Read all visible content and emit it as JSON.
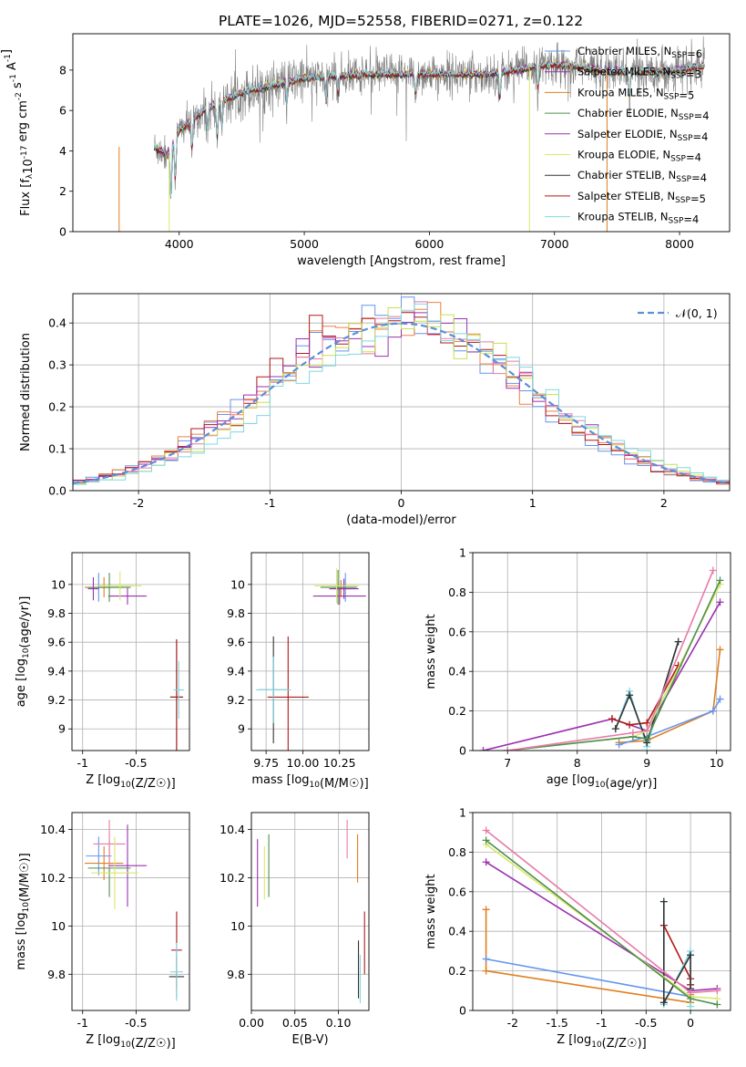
{
  "figure_title": "PLATE=1026, MJD=52558, FIBERID=0271, z=0.122",
  "colors": {
    "Chabrier MILES": "#6495ed",
    "Salpeter MILES": "#9b30b0",
    "Kroupa MILES": "#e07f1f",
    "Chabrier ELODIE": "#4e8f4e",
    "Salpeter ELODIE": "#9b30b0",
    "Kroupa ELODIE": "#d8e86a",
    "Chabrier STELIB": "#333333",
    "Salpeter STELIB": "#b01818",
    "Kroupa STELIB": "#80d8e0",
    "data": "#808080",
    "hist_orange": "#f08040",
    "hist_pink": "#e87aa8",
    "hist_lime": "#c8e050",
    "gauss": "#5b8fd9",
    "grid": "#b0b0b0"
  },
  "chart_data": [
    {
      "type": "line",
      "name": "spectrum",
      "xlabel": "wavelength [Angstrom, rest frame]",
      "ylabel": "Flux [f_λ10^-17 erg cm^-2 s^-1 A^-1]",
      "xlim": [
        3150,
        8400
      ],
      "ylim": [
        0,
        9.8
      ],
      "xticks": [
        4000,
        5000,
        6000,
        7000,
        8000
      ],
      "yticks": [
        0,
        2,
        4,
        6,
        8
      ],
      "legend_position": "upper right",
      "legend": [
        {
          "label": "Chabrier MILES, N_SSP=6",
          "color_key": "Chabrier MILES"
        },
        {
          "label": "Salpeter MILES, N_SSP=3",
          "color_key": "Salpeter MILES"
        },
        {
          "label": "Kroupa MILES, N_SSP=5",
          "color_key": "Kroupa MILES"
        },
        {
          "label": "Chabrier ELODIE, N_SSP=4",
          "color_key": "Chabrier ELODIE"
        },
        {
          "label": "Salpeter ELODIE, N_SSP=4",
          "color_key": "Salpeter ELODIE"
        },
        {
          "label": "Kroupa ELODIE, N_SSP=4",
          "color_key": "Kroupa ELODIE"
        },
        {
          "label": "Chabrier STELIB, N_SSP=4",
          "color_key": "Chabrier STELIB"
        },
        {
          "label": "Salpeter STELIB, N_SSP=5",
          "color_key": "Salpeter STELIB"
        },
        {
          "label": "Kroupa STELIB, N_SSP=4",
          "color_key": "Kroupa STELIB"
        }
      ],
      "continuum": [
        [
          3800,
          4.2
        ],
        [
          3900,
          3.8
        ],
        [
          4000,
          5.0
        ],
        [
          4200,
          6.0
        ],
        [
          4500,
          6.9
        ],
        [
          5000,
          7.6
        ],
        [
          5500,
          7.8
        ],
        [
          6000,
          7.8
        ],
        [
          6500,
          7.8
        ],
        [
          7000,
          8.3
        ],
        [
          7500,
          7.9
        ],
        [
          8000,
          8.0
        ],
        [
          8200,
          8.2
        ]
      ],
      "dips": [
        [
          3934,
          2.5
        ],
        [
          3969,
          2.0
        ],
        [
          4102,
          1.5
        ],
        [
          4227,
          1.0
        ],
        [
          4304,
          1.6
        ],
        [
          4341,
          1.2
        ],
        [
          4861,
          1.0
        ],
        [
          5175,
          1.2
        ],
        [
          5270,
          0.9
        ],
        [
          5890,
          1.0
        ],
        [
          6563,
          1.3
        ],
        [
          6868,
          1.0
        ],
        [
          7600,
          1.2
        ]
      ],
      "data_range": [
        3800,
        8200
      ],
      "model_range": [
        3800,
        8200
      ]
    },
    {
      "type": "histogram",
      "name": "residuals",
      "xlabel": "(data-model)/error",
      "ylabel": "Normed distribution",
      "xlim": [
        -2.5,
        2.5
      ],
      "ylim": [
        0,
        0.47
      ],
      "xticks": [
        -2,
        -1,
        0,
        1,
        2
      ],
      "yticks": [
        0.0,
        0.1,
        0.2,
        0.3,
        0.4
      ],
      "legend_position": "upper right",
      "gauss_label": "𝒩(0, 1)",
      "bin_width": 0.1
    },
    {
      "type": "errorbar",
      "name": "age_vs_Z",
      "xlabel": "Z [log10(Z/Z☉)]",
      "ylabel": "age  [log10(age/yr)]",
      "xlim": [
        -1.1,
        -0.0
      ],
      "ylim": [
        8.85,
        10.22
      ],
      "xticks": [
        -1.0,
        -0.5
      ],
      "yticks": [
        9.0,
        9.2,
        9.4,
        9.6,
        9.8,
        10.0
      ],
      "points": [
        {
          "x": -0.85,
          "y": 9.98,
          "xerr": 0.12,
          "yerr": 0.1,
          "color_key": "Chabrier MILES"
        },
        {
          "x": -0.58,
          "y": 9.92,
          "xerr": 0.18,
          "yerr": 0.06,
          "color_key": "Salpeter MILES"
        },
        {
          "x": -0.8,
          "y": 9.98,
          "xerr": 0.18,
          "yerr": 0.07,
          "color_key": "Kroupa MILES"
        },
        {
          "x": -0.75,
          "y": 9.98,
          "xerr": 0.2,
          "yerr": 0.1,
          "color_key": "Chabrier ELODIE"
        },
        {
          "x": -0.9,
          "y": 9.97,
          "xerr": 0.05,
          "yerr": 0.08,
          "color_key": "Salpeter ELODIE"
        },
        {
          "x": -0.65,
          "y": 9.99,
          "xerr": 0.2,
          "yerr": 0.1,
          "color_key": "Kroupa ELODIE"
        },
        {
          "x": -0.12,
          "y": 9.22,
          "xerr": 0.06,
          "yerr": 0.4,
          "color_key": "Chabrier STELIB"
        },
        {
          "x": -0.12,
          "y": 9.22,
          "xerr": 0.06,
          "yerr": 0.4,
          "color_key": "Salpeter STELIB"
        },
        {
          "x": -0.1,
          "y": 9.27,
          "xerr": 0.05,
          "yerr": 0.2,
          "color_key": "Kroupa STELIB"
        }
      ]
    },
    {
      "type": "errorbar",
      "name": "age_vs_mass",
      "xlabel": "mass [log10(M/M☉)]",
      "ylabel": "",
      "xlim": [
        9.65,
        10.45
      ],
      "ylim": [
        8.85,
        10.22
      ],
      "xticks": [
        9.75,
        10.0,
        10.25
      ],
      "xticklabels": [
        "9.75",
        "10.00",
        "10.25"
      ],
      "yticks": [
        9.0,
        9.2,
        9.4,
        9.6,
        9.8,
        10.0
      ],
      "points": [
        {
          "x": 10.29,
          "y": 9.98,
          "xerr": 0.08,
          "yerr": 0.1,
          "color_key": "Chabrier MILES"
        },
        {
          "x": 10.25,
          "y": 9.92,
          "xerr": 0.18,
          "yerr": 0.06,
          "color_key": "Salpeter MILES"
        },
        {
          "x": 10.26,
          "y": 9.97,
          "xerr": 0.07,
          "yerr": 0.06,
          "color_key": "Kroupa MILES"
        },
        {
          "x": 10.24,
          "y": 9.98,
          "xerr": 0.12,
          "yerr": 0.12,
          "color_key": "Chabrier ELODIE"
        },
        {
          "x": 10.28,
          "y": 9.97,
          "xerr": 0.1,
          "yerr": 0.07,
          "color_key": "Salpeter ELODIE"
        },
        {
          "x": 10.23,
          "y": 9.99,
          "xerr": 0.15,
          "yerr": 0.12,
          "color_key": "Kroupa ELODIE"
        },
        {
          "x": 9.8,
          "y": 9.27,
          "xerr": 0.1,
          "yerr": 0.37,
          "color_key": "Chabrier STELIB"
        },
        {
          "x": 9.9,
          "y": 9.22,
          "xerr": 0.14,
          "yerr": 0.42,
          "color_key": "Salpeter STELIB"
        },
        {
          "x": 9.8,
          "y": 9.27,
          "xerr": 0.12,
          "yerr": 0.23,
          "color_key": "Kroupa STELIB"
        }
      ]
    },
    {
      "type": "line",
      "name": "weight_vs_age",
      "xlabel": "age  [log10(age/yr)]",
      "ylabel": "mass weight",
      "xlim": [
        6.5,
        10.2
      ],
      "ylim": [
        0,
        1.0
      ],
      "xticks": [
        7,
        8,
        9,
        10
      ],
      "yticks": [
        0.0,
        0.2,
        0.4,
        0.6,
        0.8,
        1.0
      ],
      "series": [
        {
          "color_key": "Kroupa MILES",
          "x": [
            8.6,
            9.0,
            9.95,
            10.05
          ],
          "y": [
            0.04,
            0.05,
            0.2,
            0.51
          ]
        },
        {
          "color_key": "Chabrier MILES",
          "x": [
            8.6,
            9.0,
            9.95,
            10.05
          ],
          "y": [
            0.03,
            0.07,
            0.2,
            0.26
          ]
        },
        {
          "color_key": "Salpeter MILES",
          "x": [
            6.65,
            8.5,
            9.0,
            10.05
          ],
          "y": [
            0.0,
            0.16,
            0.1,
            0.75
          ]
        },
        {
          "color_key": "Salpeter STELIB",
          "x": [
            8.5,
            8.75,
            9.0,
            9.45
          ],
          "y": [
            0.16,
            0.13,
            0.14,
            0.43
          ]
        },
        {
          "color_key": "Kroupa STELIB",
          "x": [
            8.55,
            8.75,
            9.0,
            9.45
          ],
          "y": [
            0.11,
            0.3,
            0.02,
            0.55
          ]
        },
        {
          "color_key": "Chabrier STELIB",
          "x": [
            8.55,
            8.75,
            9.0,
            9.45
          ],
          "y": [
            0.11,
            0.28,
            0.04,
            0.55
          ]
        },
        {
          "color_key": "Kroupa ELODIE",
          "x": [
            7.0,
            8.8,
            9.0,
            10.05
          ],
          "y": [
            0.0,
            0.07,
            0.1,
            0.84
          ]
        },
        {
          "color_key": "Chabrier ELODIE",
          "x": [
            7.0,
            8.8,
            9.0,
            10.05
          ],
          "y": [
            0.0,
            0.07,
            0.06,
            0.86
          ]
        },
        {
          "color_key": "hist_pink",
          "x": [
            7.0,
            8.8,
            9.0,
            9.95
          ],
          "y": [
            0.0,
            0.09,
            0.1,
            0.91
          ]
        }
      ]
    },
    {
      "type": "errorbar",
      "name": "mass_vs_Z",
      "xlabel": "Z [log10(Z/Z☉)]",
      "ylabel": "mass [log10(M/M☉)]",
      "xlim": [
        -1.1,
        -0.0
      ],
      "ylim": [
        9.65,
        10.47
      ],
      "xticks": [
        -1.0,
        -0.5
      ],
      "yticks": [
        9.8,
        10.0,
        10.2,
        10.4
      ],
      "points": [
        {
          "x": -0.85,
          "y": 10.29,
          "xerr": 0.12,
          "yerr": 0.08,
          "color_key": "Chabrier MILES"
        },
        {
          "x": -0.58,
          "y": 10.25,
          "xerr": 0.18,
          "yerr": 0.17,
          "color_key": "Salpeter MILES"
        },
        {
          "x": -0.8,
          "y": 10.26,
          "xerr": 0.18,
          "yerr": 0.07,
          "color_key": "Kroupa MILES"
        },
        {
          "x": -0.75,
          "y": 10.24,
          "xerr": 0.2,
          "yerr": 0.12,
          "color_key": "Chabrier ELODIE"
        },
        {
          "x": -0.75,
          "y": 10.34,
          "xerr": 0.15,
          "yerr": 0.1,
          "color_key": "hist_pink"
        },
        {
          "x": -0.7,
          "y": 10.22,
          "xerr": 0.22,
          "yerr": 0.15,
          "color_key": "Kroupa ELODIE"
        },
        {
          "x": -0.12,
          "y": 9.79,
          "xerr": 0.07,
          "yerr": 0.09,
          "color_key": "Chabrier STELIB"
        },
        {
          "x": -0.12,
          "y": 9.9,
          "xerr": 0.05,
          "yerr": 0.16,
          "color_key": "Salpeter STELIB"
        },
        {
          "x": -0.12,
          "y": 9.81,
          "xerr": 0.06,
          "yerr": 0.12,
          "color_key": "Kroupa STELIB"
        }
      ]
    },
    {
      "type": "errorbar",
      "name": "mass_vs_ebv",
      "xlabel": "E(B-V)",
      "ylabel": "",
      "xlim": [
        0.0,
        0.135
      ],
      "ylim": [
        9.65,
        10.47
      ],
      "xticks": [
        0.0,
        0.05,
        0.1
      ],
      "xticklabels": [
        "0.00",
        "0.05",
        "0.10"
      ],
      "yticks": [
        9.8,
        10.0,
        10.2,
        10.4
      ],
      "points": [
        {
          "x": 0.007,
          "y": 10.22,
          "xerr": 0.0,
          "yerr": 0.14,
          "color_key": "Salpeter MILES"
        },
        {
          "x": 0.015,
          "y": 10.22,
          "xerr": 0.0,
          "yerr": 0.11,
          "color_key": "Kroupa ELODIE"
        },
        {
          "x": 0.02,
          "y": 10.25,
          "xerr": 0.0,
          "yerr": 0.13,
          "color_key": "Chabrier ELODIE"
        },
        {
          "x": 0.11,
          "y": 10.36,
          "xerr": 0.0,
          "yerr": 0.08,
          "color_key": "hist_pink"
        },
        {
          "x": 0.122,
          "y": 10.28,
          "xerr": 0.0,
          "yerr": 0.1,
          "color_key": "Kroupa MILES"
        },
        {
          "x": 0.123,
          "y": 9.82,
          "xerr": 0.0,
          "yerr": 0.12,
          "color_key": "Chabrier STELIB"
        },
        {
          "x": 0.125,
          "y": 9.78,
          "xerr": 0.0,
          "yerr": 0.1,
          "color_key": "Kroupa STELIB"
        },
        {
          "x": 0.13,
          "y": 9.93,
          "xerr": 0.0,
          "yerr": 0.13,
          "color_key": "Salpeter STELIB"
        }
      ]
    },
    {
      "type": "line",
      "name": "weight_vs_Z",
      "xlabel": "Z [log10(Z/Z☉)]",
      "ylabel": "mass weight",
      "xlim": [
        -2.45,
        0.45
      ],
      "ylim": [
        0,
        1.0
      ],
      "xticks": [
        -2.0,
        -1.5,
        -1.0,
        -0.5,
        0.0
      ],
      "yticks": [
        0.0,
        0.2,
        0.4,
        0.6,
        0.8,
        1.0
      ],
      "series": [
        {
          "color_key": "Kroupa MILES",
          "x": [
            -2.3,
            -2.3,
            0.0,
            0.0
          ],
          "y": [
            0.51,
            0.2,
            0.04,
            0.08
          ]
        },
        {
          "color_key": "Chabrier MILES",
          "x": [
            -2.3,
            0.0
          ],
          "y": [
            0.26,
            0.07
          ]
        },
        {
          "color_key": "Salpeter MILES",
          "x": [
            -2.3,
            0.0,
            0.3
          ],
          "y": [
            0.75,
            0.1,
            0.11
          ]
        },
        {
          "color_key": "Salpeter STELIB",
          "x": [
            -0.3,
            0.0,
            0.0
          ],
          "y": [
            0.43,
            0.16,
            0.13
          ]
        },
        {
          "color_key": "Kroupa STELIB",
          "x": [
            -0.3,
            -0.3,
            0.0,
            0.0
          ],
          "y": [
            0.55,
            0.03,
            0.3,
            0.02
          ]
        },
        {
          "color_key": "Chabrier STELIB",
          "x": [
            -0.3,
            -0.3,
            0.0,
            0.0
          ],
          "y": [
            0.55,
            0.04,
            0.28,
            0.11
          ]
        },
        {
          "color_key": "Kroupa ELODIE",
          "x": [
            -2.3,
            0.0,
            0.3
          ],
          "y": [
            0.84,
            0.07,
            0.06
          ]
        },
        {
          "color_key": "Chabrier ELODIE",
          "x": [
            -2.3,
            0.0,
            0.3
          ],
          "y": [
            0.86,
            0.06,
            0.03
          ]
        },
        {
          "color_key": "hist_pink",
          "x": [
            -2.3,
            0.0,
            0.3
          ],
          "y": [
            0.91,
            0.09,
            0.1
          ]
        }
      ]
    }
  ]
}
